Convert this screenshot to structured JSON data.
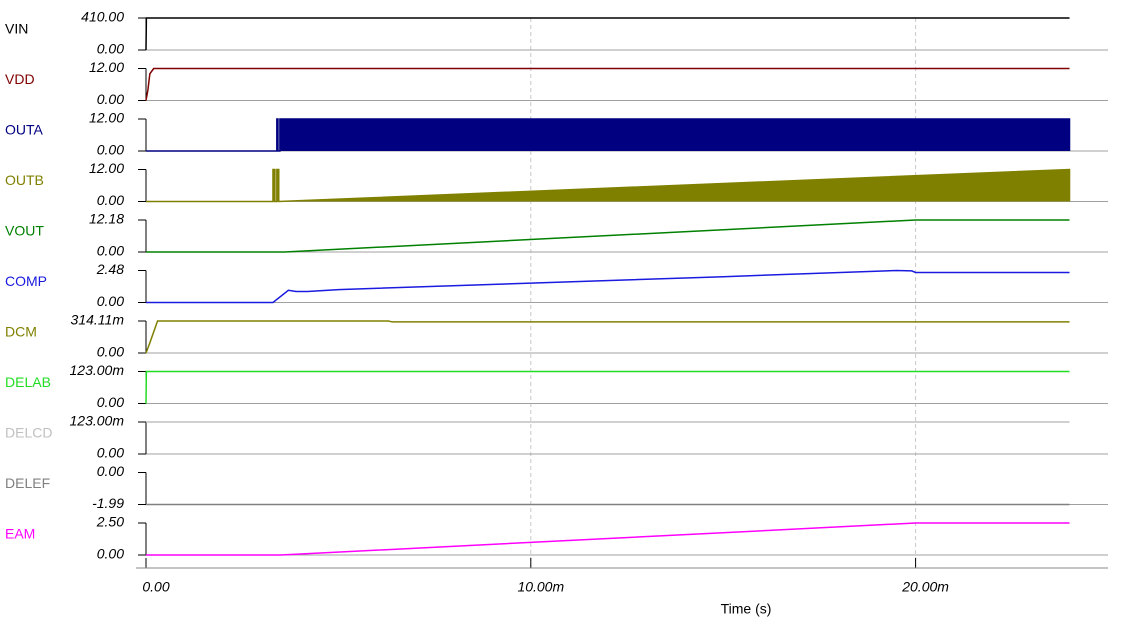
{
  "chart_data": {
    "type": "line",
    "x_label": "Time (s)",
    "xlim": [
      0,
      0.025
    ],
    "xticks": [
      {
        "value": 0,
        "label": "0.00"
      },
      {
        "value": 0.01,
        "label": "10.00m"
      },
      {
        "value": 0.02,
        "label": "20.00m"
      }
    ],
    "grid": true,
    "panels": [
      {
        "name": "VIN",
        "color": "#000000",
        "ylim": [
          0,
          410
        ],
        "yticks": [
          {
            "value": 0,
            "label": "0.00"
          },
          {
            "value": 410,
            "label": "410.00"
          }
        ],
        "x": [
          0,
          1e-05,
          0.024
        ],
        "values": [
          0,
          410,
          410
        ]
      },
      {
        "name": "VDD",
        "color": "#800000",
        "ylim": [
          0,
          12
        ],
        "yticks": [
          {
            "value": 0,
            "label": "0.00"
          },
          {
            "value": 12,
            "label": "12.00"
          }
        ],
        "x": [
          0,
          5e-05,
          0.0001,
          0.0002,
          0.024
        ],
        "values": [
          0,
          4,
          10,
          12,
          12
        ]
      },
      {
        "name": "OUTA",
        "color": "#000080",
        "fill": true,
        "ylim": [
          0,
          12
        ],
        "yticks": [
          {
            "value": 0,
            "label": "0.00"
          },
          {
            "value": 12,
            "label": "12.00"
          }
        ],
        "x": [
          0,
          0.0034,
          0.0034,
          0.00343,
          0.00343,
          0.00348,
          0.00348,
          0.024,
          0.024
        ],
        "values": [
          0,
          0,
          12,
          12,
          0,
          0,
          12,
          12,
          0
        ]
      },
      {
        "name": "OUTB",
        "color": "#808000",
        "fill": true,
        "ylim": [
          0,
          12
        ],
        "yticks": [
          {
            "value": 0,
            "label": "0.00"
          },
          {
            "value": 12,
            "label": "12.00"
          }
        ],
        "x": [
          0,
          0.0033,
          0.0033,
          0.00335,
          0.00335,
          0.0034,
          0.0034,
          0.00345,
          0.00345,
          0.024,
          0.024
        ],
        "values": [
          0,
          0,
          12,
          12,
          0,
          0,
          12,
          12,
          0,
          12,
          0
        ]
      },
      {
        "name": "VOUT",
        "color": "#008000",
        "ylim": [
          0,
          12.18
        ],
        "yticks": [
          {
            "value": 0,
            "label": "0.00"
          },
          12.18
        ],
        "x": [
          0,
          0.0036,
          0.02,
          0.024
        ],
        "values": [
          0,
          0,
          12.18,
          12.18
        ]
      },
      {
        "name": "COMP",
        "color": "#1a1ae0",
        "ylim": [
          0,
          2.48
        ],
        "yticks": [
          {
            "value": 0,
            "label": "0.00"
          },
          2.48
        ],
        "x": [
          0,
          0.0033,
          0.0037,
          0.0039,
          0.0042,
          0.005,
          0.01,
          0.015,
          0.0195,
          0.0199,
          0.02,
          0.024
        ],
        "values": [
          0,
          0,
          0.95,
          0.85,
          0.85,
          1.0,
          1.5,
          2.0,
          2.48,
          2.45,
          2.33,
          2.33
        ]
      },
      {
        "name": "DCM",
        "color": "#808000",
        "ylim": [
          0,
          0.31411
        ],
        "yticks": [
          {
            "value": 0,
            "label": "0.00"
          },
          {
            "value": 0.31411,
            "label": "314.11m"
          }
        ],
        "x": [
          0,
          0.0001,
          0.0003,
          0.0063,
          0.0064,
          0.024
        ],
        "values": [
          0,
          0.1,
          0.31411,
          0.31411,
          0.305,
          0.305
        ]
      },
      {
        "name": "DELAB",
        "color": "#22dd22",
        "ylim": [
          0,
          0.123
        ],
        "yticks": [
          {
            "value": 0,
            "label": "0.00"
          },
          {
            "value": 0.123,
            "label": "123.00m"
          }
        ],
        "x": [
          0,
          1e-05,
          0.024
        ],
        "values": [
          0,
          0.123,
          0.123
        ]
      },
      {
        "name": "DELCD",
        "color": "#c0c0c0",
        "ylim": [
          0,
          0.123
        ],
        "yticks": [
          {
            "value": 0,
            "label": "0.00"
          },
          {
            "value": 0.123,
            "label": "123.00m"
          }
        ],
        "x": [
          0,
          0.024
        ],
        "values": [
          0.123,
          0.123
        ]
      },
      {
        "name": "DELEF",
        "color": "#808080",
        "ylim": [
          -1.99,
          0
        ],
        "yticks": [
          -1.99,
          {
            "value": 0,
            "label": "0.00"
          }
        ],
        "x": [
          0,
          0.024
        ],
        "values": [
          -1.99,
          -1.99
        ]
      },
      {
        "name": "EAM",
        "color": "#ff00ff",
        "ylim": [
          0,
          2.5
        ],
        "yticks": [
          {
            "value": 0,
            "label": "0.00"
          },
          {
            "value": 2.5,
            "label": "2.50"
          }
        ],
        "x": [
          0,
          0.0035,
          0.02,
          0.024
        ],
        "values": [
          0,
          0,
          2.5,
          2.5
        ]
      }
    ]
  }
}
